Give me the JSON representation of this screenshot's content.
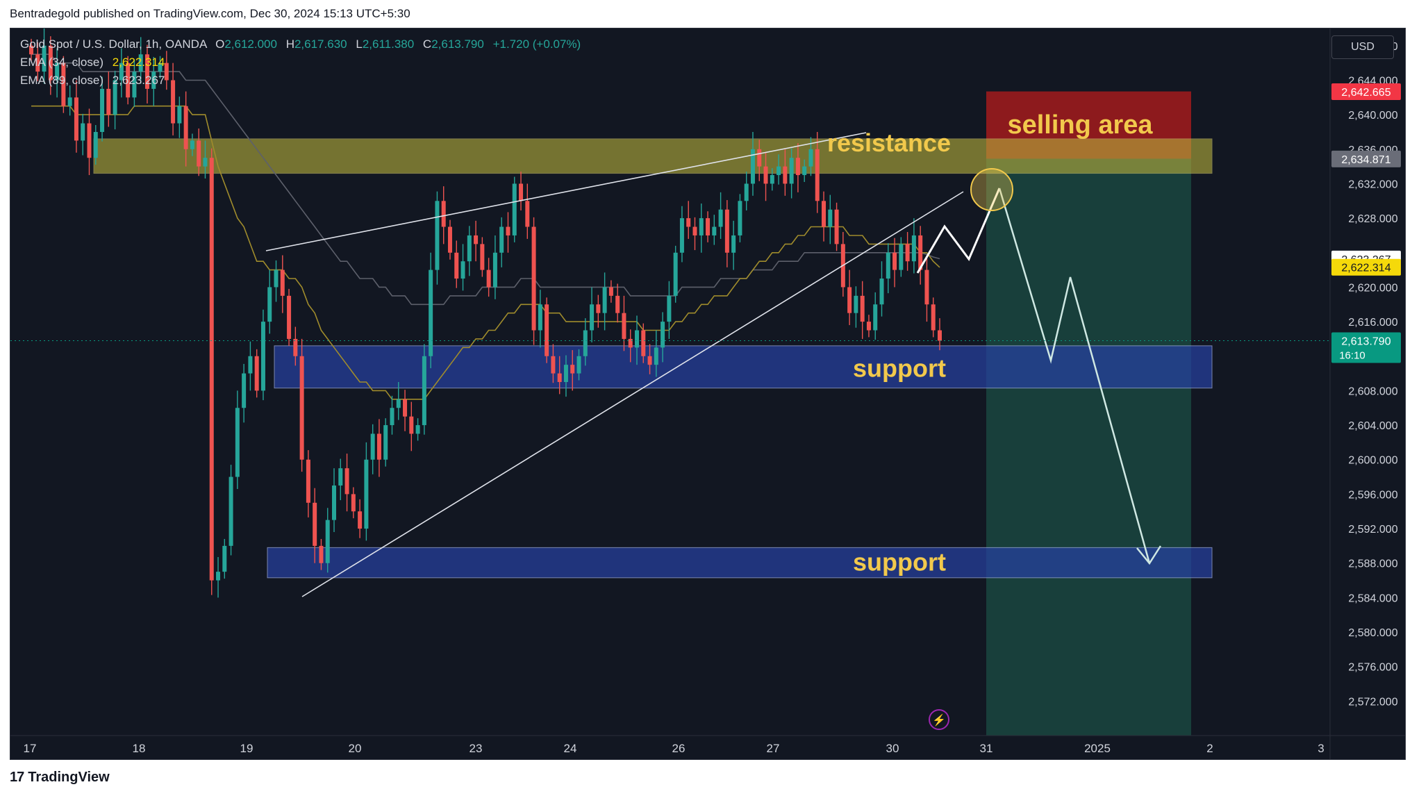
{
  "header": {
    "published": "Bentradegold published on TradingView.com, Dec 30, 2024 15:13 UTC+5:30"
  },
  "legend": {
    "symbol": "Gold Spot / U.S. Dollar, 1h, OANDA",
    "o_label": "O",
    "o": "2,612.000",
    "h_label": "H",
    "h": "2,617.630",
    "l_label": "L",
    "l": "2,611.380",
    "c_label": "C",
    "c": "2,613.790",
    "change": "+1.720 (+0.07%)",
    "ema34_label": "EMA (34, close)",
    "ema34": "2,622.314",
    "ema89_label": "EMA (89, close)",
    "ema89": "2,623.267"
  },
  "currency": "USD",
  "footer": {
    "brand": "TradingView",
    "logo": "17"
  },
  "colors": {
    "background": "#121722",
    "up": "#26a69a",
    "down": "#ef5350",
    "ema34": "#a08c2c",
    "ema89": "#5d606b",
    "resistance_zone": "#b8b03c",
    "support_zone": "#2741a3",
    "selling_area": "#b71c1c",
    "target_area": "#1b4d44",
    "annotation_text": "#f2c94c"
  },
  "chart_data": {
    "type": "candlestick",
    "symbol": "XAUUSD",
    "timeframe": "1h",
    "ylim": [
      2568,
      2650
    ],
    "y_ticks": [
      2572,
      2576,
      2580,
      2584,
      2588,
      2592,
      2596,
      2600,
      2604,
      2608,
      2612,
      2616,
      2620,
      2624,
      2628,
      2632,
      2636,
      2640,
      2644,
      2648
    ],
    "y_tick_labels": [
      "2,572.000",
      "2,576.000",
      "2,580.000",
      "2,584.000",
      "2,588.000",
      "2,592.000",
      "2,596.000",
      "2,600.000",
      "2,604.000",
      "2,608.000",
      "",
      "2,616.000",
      "2,620.000",
      "",
      "2,628.000",
      "2,632.000",
      "2,636.000",
      "2,640.000",
      "2,644.000",
      "2,648.000"
    ],
    "x_labels": [
      "17",
      "18",
      "19",
      "20",
      "23",
      "24",
      "26",
      "27",
      "30",
      "31",
      "2025",
      "2",
      "3"
    ],
    "price_tags": [
      {
        "label": "2,642.665",
        "value": 2642.665,
        "color": "#f23645"
      },
      {
        "label": "2,634.871",
        "value": 2634.871,
        "color": "#6a6d78"
      },
      {
        "label": "2,623.267",
        "value": 2623.267,
        "color": "#ffffff"
      },
      {
        "label": "2,622.314",
        "value": 2622.314,
        "color": "#f5d90a"
      },
      {
        "label": "2,613.790",
        "value": 2613.79,
        "color": "#089981",
        "countdown": "16:10"
      }
    ],
    "closes": [
      2647,
      2645,
      2648,
      2644,
      2646,
      2641,
      2642,
      2637,
      2639,
      2635,
      2638,
      2643,
      2640,
      2644,
      2646,
      2642,
      2645,
      2647,
      2643,
      2645,
      2646,
      2644,
      2639,
      2641,
      2636,
      2637,
      2634,
      2635,
      2586,
      2587,
      2590,
      2598,
      2606,
      2610,
      2612,
      2608,
      2616,
      2620,
      2622,
      2619,
      2614,
      2612,
      2600,
      2595,
      2590,
      2588,
      2593,
      2597,
      2599,
      2596,
      2594,
      2592,
      2600,
      2603,
      2600,
      2604,
      2606,
      2607,
      2605,
      2603,
      2604,
      2612,
      2622,
      2630,
      2627,
      2624,
      2621,
      2623,
      2626,
      2625,
      2622,
      2620,
      2624,
      2627,
      2626,
      2632,
      2630,
      2627,
      2615,
      2618,
      2612,
      2610,
      2609,
      2611,
      2610,
      2612,
      2615,
      2618,
      2617,
      2620,
      2619,
      2617,
      2614,
      2613,
      2615,
      2612,
      2611,
      2613,
      2616,
      2619,
      2624,
      2628,
      2627,
      2626,
      2628,
      2626,
      2627,
      2629,
      2624,
      2626,
      2630,
      2632,
      2636,
      2634,
      2632,
      2633,
      2634,
      2632,
      2635,
      2633,
      2634,
      2636,
      2630,
      2627,
      2629,
      2625,
      2620,
      2617,
      2619,
      2616,
      2615,
      2618,
      2621,
      2624,
      2622,
      2625,
      2623,
      2626,
      2622,
      2618,
      2615,
      2613.79
    ],
    "ema34_values": [
      2641,
      2641,
      2641,
      2641,
      2641,
      2641,
      2641,
      2640,
      2640,
      2640,
      2640,
      2640,
      2640,
      2640,
      2640,
      2640,
      2641,
      2641,
      2641,
      2641,
      2641,
      2641,
      2641,
      2641,
      2641,
      2640,
      2640,
      2640,
      2637,
      2634,
      2632,
      2630,
      2628,
      2627,
      2625,
      2623,
      2623,
      2622,
      2622,
      2622,
      2621,
      2621,
      2620,
      2618,
      2617,
      2615,
      2614,
      2613,
      2612,
      2611,
      2610,
      2609,
      2609,
      2608,
      2608,
      2608,
      2607,
      2607,
      2607,
      2607,
      2607,
      2607,
      2608,
      2609,
      2610,
      2611,
      2612,
      2613,
      2613,
      2614,
      2614,
      2615,
      2615,
      2616,
      2617,
      2617,
      2618,
      2618,
      2618,
      2618,
      2617,
      2617,
      2617,
      2616,
      2616,
      2616,
      2616,
      2616,
      2616,
      2616,
      2616,
      2616,
      2616,
      2616,
      2616,
      2615,
      2615,
      2615,
      2615,
      2615,
      2616,
      2616,
      2617,
      2617,
      2618,
      2618,
      2619,
      2619,
      2619,
      2620,
      2621,
      2621,
      2622,
      2623,
      2623,
      2624,
      2624,
      2625,
      2625,
      2626,
      2626,
      2627,
      2627,
      2627,
      2627,
      2627,
      2627,
      2626,
      2626,
      2626,
      2625,
      2625,
      2625,
      2625,
      2625,
      2625,
      2625,
      2625,
      2624,
      2624,
      2623,
      2622.3
    ],
    "ema89_values": [
      2647,
      2647,
      2647,
      2647,
      2646,
      2646,
      2646,
      2646,
      2645,
      2645,
      2645,
      2645,
      2645,
      2645,
      2645,
      2645,
      2645,
      2645,
      2645,
      2645,
      2645,
      2645,
      2645,
      2645,
      2644,
      2644,
      2644,
      2644,
      2643,
      2642,
      2641,
      2640,
      2639,
      2638,
      2637,
      2636,
      2635,
      2634,
      2633,
      2632,
      2631,
      2630,
      2629,
      2628,
      2627,
      2626,
      2625,
      2624,
      2623,
      2623,
      2622,
      2621,
      2621,
      2621,
      2620,
      2620,
      2619,
      2619,
      2619,
      2618,
      2618,
      2618,
      2618,
      2618,
      2618,
      2619,
      2619,
      2619,
      2619,
      2619,
      2620,
      2620,
      2620,
      2620,
      2620,
      2620,
      2621,
      2621,
      2621,
      2620,
      2620,
      2620,
      2620,
      2620,
      2620,
      2620,
      2620,
      2620,
      2620,
      2620,
      2620,
      2620,
      2620,
      2619,
      2619,
      2619,
      2619,
      2619,
      2619,
      2619,
      2619,
      2620,
      2620,
      2620,
      2620,
      2620,
      2620,
      2621,
      2621,
      2621,
      2621,
      2621,
      2622,
      2622,
      2622,
      2622,
      2623,
      2623,
      2623,
      2623,
      2624,
      2624,
      2624,
      2624,
      2624,
      2624,
      2624,
      2624,
      2624,
      2624,
      2624,
      2624,
      2624,
      2624,
      2624,
      2624,
      2624,
      2624,
      2624,
      2623.8,
      2623.5,
      2623.3
    ],
    "zones": [
      {
        "name": "resistance",
        "label": "resistance",
        "low": 2633.2,
        "high": 2637.2
      },
      {
        "name": "support",
        "label": "support",
        "low": 2608.3,
        "high": 2613.2
      },
      {
        "name": "support",
        "label": "support",
        "low": 2586.3,
        "high": 2589.8
      }
    ],
    "selling_area": {
      "label": "selling area",
      "low": 2634.9,
      "high": 2642.7
    },
    "target_area": {
      "low": 2568,
      "high": 2634.9
    }
  }
}
